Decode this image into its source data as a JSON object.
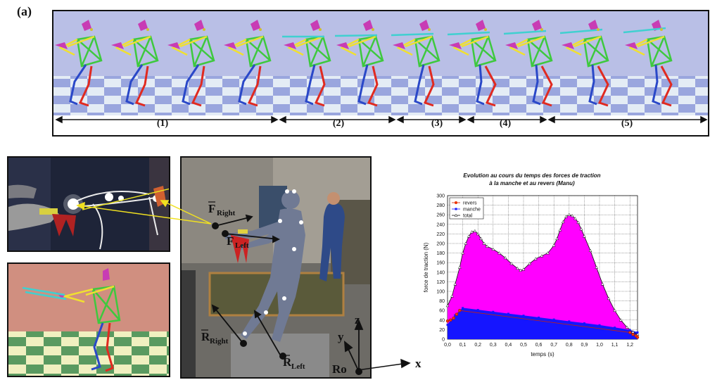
{
  "panel_a": {
    "label": "(a)",
    "phases": [
      "(1)",
      "(2)",
      "(3)",
      "(4)",
      "(5)"
    ]
  },
  "photo_annotations": {
    "f_right": "F",
    "f_right_sub": "Right",
    "f_left": "F",
    "f_left_sub": "Left",
    "r_right": "R",
    "r_right_sub": "Right",
    "r_left": "R",
    "r_left_sub": "Left",
    "axis_z": "z",
    "axis_y": "y",
    "axis_x": "x",
    "origin": "Ro"
  },
  "colors": {
    "sky": "#b9bfe6",
    "floor_light": "#e4ecf5",
    "floor_dark": "#9aa6de",
    "torso_green": "#3ec93e",
    "arm_yellow": "#f0e030",
    "head_magenta": "#c83cb4",
    "leg_red": "#e02a20",
    "leg_blue": "#2a48c8",
    "stick_cyan": "#40d0d0",
    "render_bg": "#d08f80",
    "render_floor_light": "#f0f0c0",
    "render_floor_dark": "#5a9a60",
    "fill_total": "#ff00ff",
    "fill_manche": "#1515ff"
  },
  "chart_data": {
    "type": "area",
    "title": "Evolution au cours du temps des forces de traction",
    "subtitle": "à la manche et au revers (Manu)",
    "xlabel": "temps (s)",
    "ylabel": "force de traction (N)",
    "xlim": [
      0,
      1.25
    ],
    "ylim": [
      0,
      300
    ],
    "x_ticks": [
      "0,0",
      "0,1",
      "0,2",
      "0,3",
      "0,4",
      "0,5",
      "0,6",
      "0,7",
      "0,8",
      "0,9",
      "1,0",
      "1,1",
      "1,2"
    ],
    "y_ticks": [
      0,
      20,
      40,
      60,
      80,
      100,
      120,
      140,
      160,
      180,
      200,
      220,
      240,
      260,
      280,
      300
    ],
    "legend_position": "top-left",
    "grid": true,
    "series": [
      {
        "name": "revers",
        "color": "#cc2200",
        "marker": "circle",
        "x": [
          0.0,
          0.02,
          0.04,
          0.06,
          0.08,
          1.2,
          1.22,
          1.24,
          1.25
        ],
        "values": [
          38,
          40,
          44,
          52,
          60,
          14,
          10,
          7,
          4
        ]
      },
      {
        "name": "manche",
        "color": "#1515ff",
        "marker": "square",
        "x": [
          0.0,
          0.05,
          0.1,
          0.2,
          0.3,
          0.4,
          0.5,
          0.6,
          0.7,
          0.8,
          0.9,
          1.0,
          1.1,
          1.2,
          1.25
        ],
        "values": [
          30,
          50,
          65,
          61,
          57,
          53,
          49,
          45,
          41,
          37,
          33,
          29,
          24,
          19,
          14
        ]
      },
      {
        "name": "total",
        "color": "#111111",
        "marker": "triangle",
        "x": [
          0.0,
          0.03,
          0.05,
          0.08,
          0.1,
          0.12,
          0.14,
          0.16,
          0.18,
          0.2,
          0.22,
          0.24,
          0.26,
          0.3,
          0.34,
          0.38,
          0.42,
          0.46,
          0.48,
          0.5,
          0.54,
          0.58,
          0.62,
          0.66,
          0.7,
          0.72,
          0.74,
          0.76,
          0.78,
          0.8,
          0.82,
          0.84,
          0.86,
          0.88,
          0.9,
          0.94,
          0.98,
          1.02,
          1.06,
          1.1,
          1.14,
          1.18,
          1.22,
          1.25
        ],
        "values": [
          70,
          90,
          115,
          150,
          180,
          200,
          215,
          224,
          226,
          220,
          210,
          200,
          194,
          188,
          180,
          170,
          158,
          148,
          144,
          146,
          158,
          168,
          174,
          180,
          196,
          210,
          228,
          245,
          256,
          260,
          258,
          252,
          244,
          230,
          215,
          185,
          150,
          115,
          85,
          60,
          40,
          25,
          15,
          10
        ]
      }
    ]
  }
}
